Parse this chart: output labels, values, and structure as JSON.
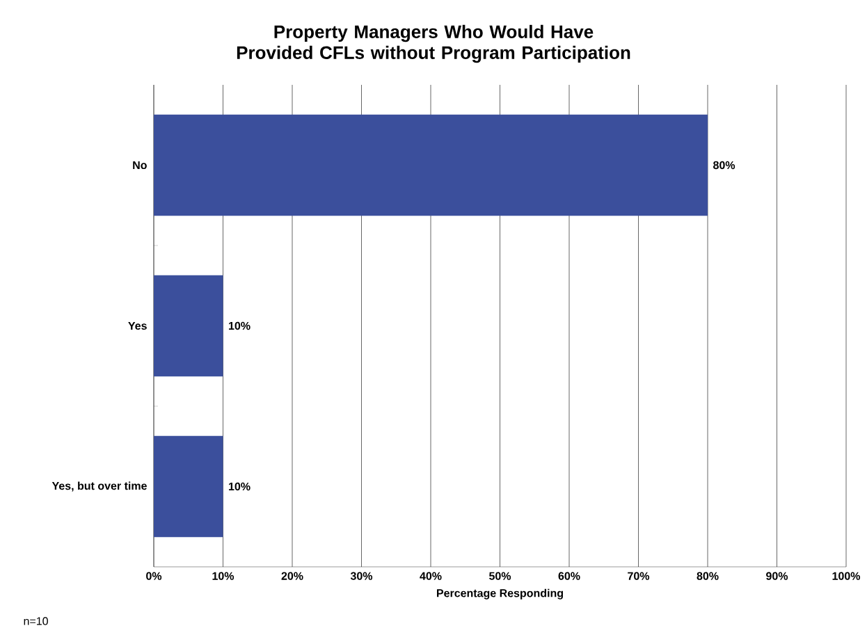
{
  "chart_data": {
    "type": "bar",
    "orientation": "horizontal",
    "title": "Property Managers Who Would Have Provided CFLs without Program Participation",
    "xlabel": "Percentage Responding",
    "categories": [
      "No",
      "Yes",
      "Yes, but over time"
    ],
    "values": [
      80,
      10,
      10
    ],
    "value_labels": [
      "80%",
      "10%",
      "10%"
    ],
    "color": "#3b4f9c",
    "xlim": [
      0,
      100
    ],
    "xticks": [
      {
        "value": 0,
        "label": "0%"
      },
      {
        "value": 10,
        "label": "10%"
      },
      {
        "value": 20,
        "label": "20%"
      },
      {
        "value": 30,
        "label": "30%"
      },
      {
        "value": 40,
        "label": "40%"
      },
      {
        "value": 50,
        "label": "50%"
      },
      {
        "value": 60,
        "label": "60%"
      },
      {
        "value": 70,
        "label": "70%"
      },
      {
        "value": 80,
        "label": "80%"
      },
      {
        "value": 90,
        "label": "90%"
      },
      {
        "value": 100,
        "label": "100%"
      }
    ],
    "grid": "x",
    "annotations": [
      "n=10"
    ]
  }
}
